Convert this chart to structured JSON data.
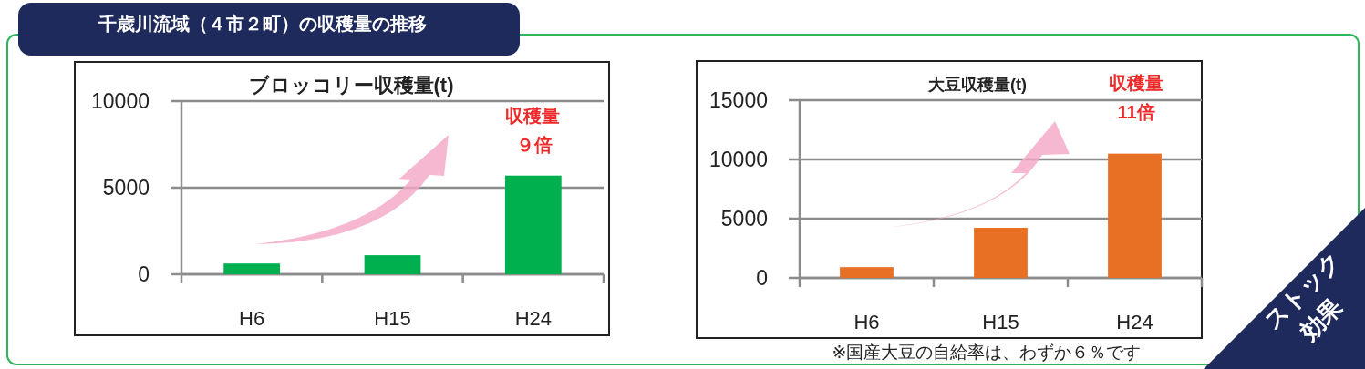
{
  "chart_data": [
    {
      "type": "bar",
      "title": "ブロッコリー収穫量(t)",
      "categories": [
        "H6",
        "H15",
        "H24"
      ],
      "values": [
        620,
        1100,
        5700
      ],
      "color": "#00b04f",
      "ylim": [
        0,
        10000
      ],
      "yticks": [
        0,
        5000,
        10000
      ],
      "grid": "y",
      "annotations": [
        "千歳川流域（４市２町）の収穫量の推移",
        "収穫量",
        "９倍"
      ]
    },
    {
      "type": "bar",
      "title": "大豆収穫量(t)",
      "categories": [
        "H6",
        "H15",
        "H24"
      ],
      "values": [
        910,
        4230,
        10490
      ],
      "color": "#e87025",
      "ylim": [
        0,
        15000
      ],
      "yticks": [
        0,
        5000,
        10000,
        15000
      ],
      "grid": "y",
      "annotations": [
        "収穫量",
        "11倍",
        "※国産大豆の自給率は、わずか６％です",
        "ストック",
        "効果"
      ]
    }
  ]
}
